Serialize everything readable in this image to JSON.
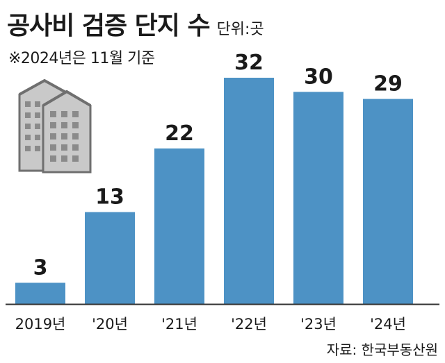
{
  "title": "공사비 검증 단지 수",
  "unit_label": "단위:곳",
  "note": "※2024년은 11월 기준",
  "source": "자료: 한국부동산원",
  "icon": "apartment-buildings-icon",
  "colors": {
    "bar": "#4d92c5",
    "text": "#1a1a1a",
    "axis": "#333333",
    "icon_fill": "#c9c9c9",
    "icon_window": "#8a8a8a",
    "icon_outline": "#6f6f6f"
  },
  "chart_data": {
    "type": "bar",
    "categories": [
      "2019년",
      "'20년",
      "'21년",
      "'22년",
      "'23년",
      "'24년"
    ],
    "values": [
      3,
      13,
      22,
      32,
      30,
      29
    ],
    "data_labels": [
      "3",
      "13",
      "22",
      "32",
      "30",
      "29"
    ],
    "ylim": [
      0,
      32
    ],
    "grid": false,
    "legend": "none"
  }
}
